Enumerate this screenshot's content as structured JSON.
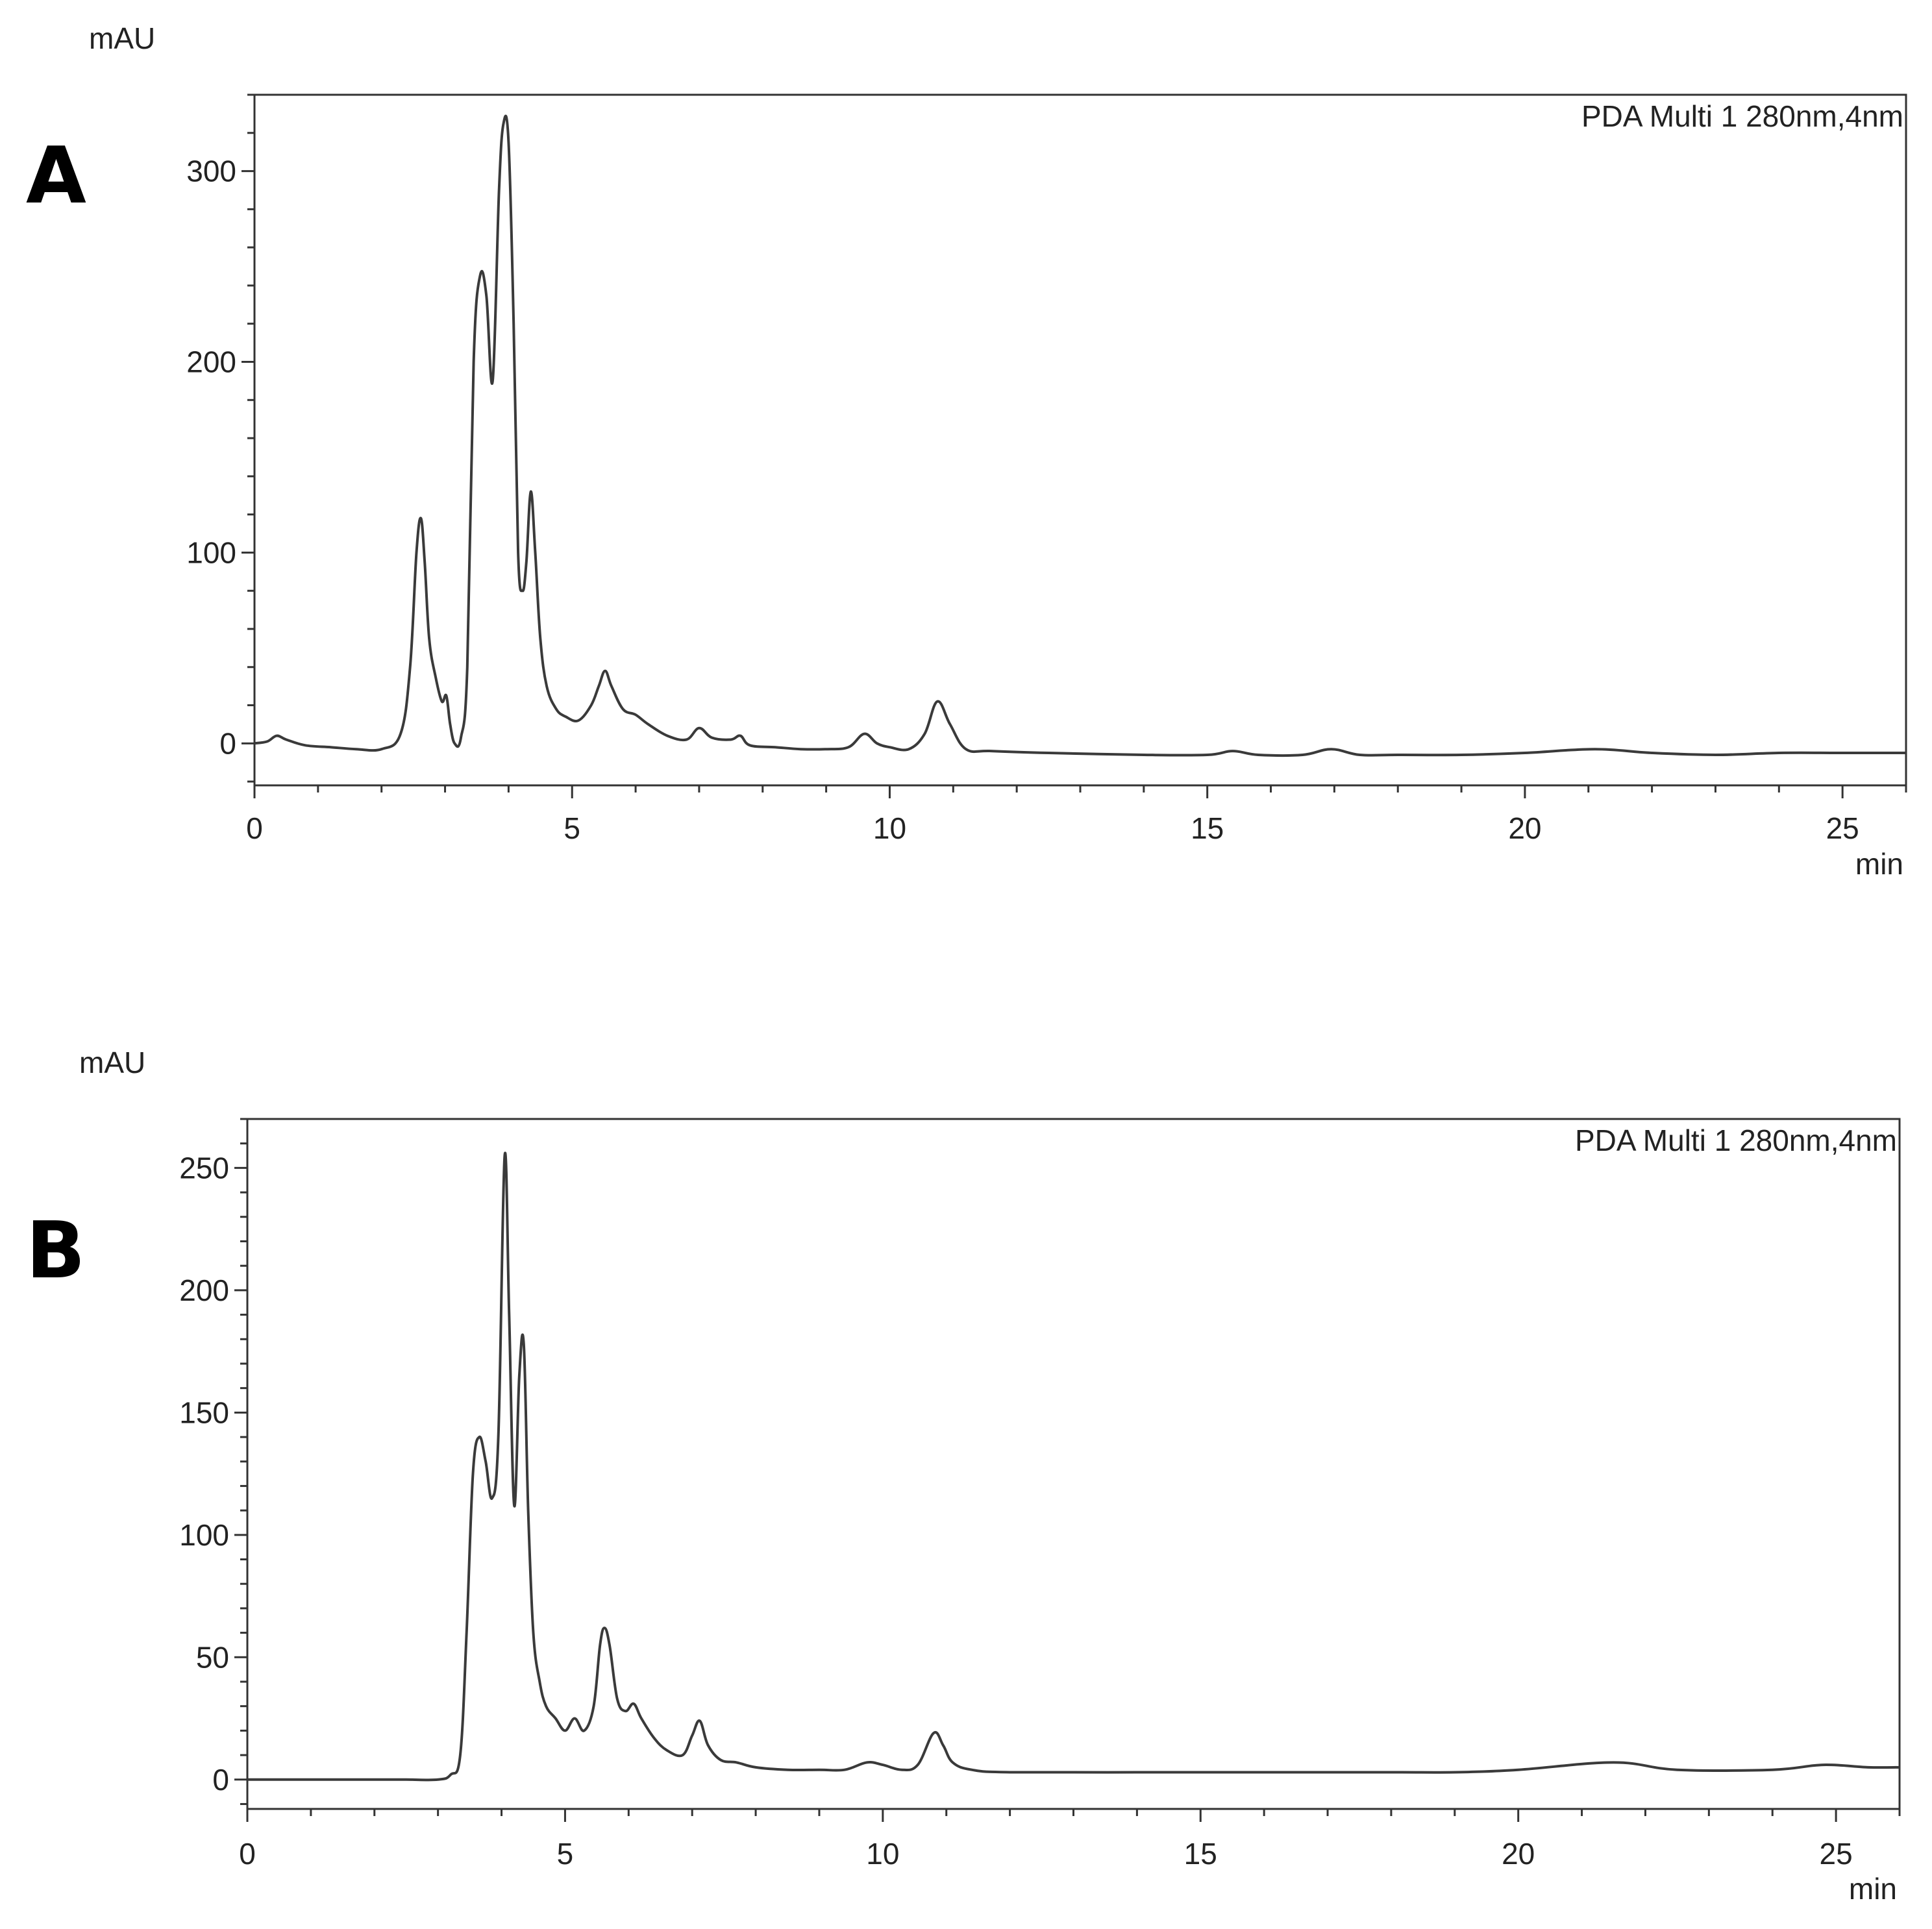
{
  "chart_data": [
    {
      "type": "line",
      "panel_label": "A",
      "ylabel": "mAU",
      "xlabel": "min",
      "legend": "PDA Multi 1 280nm,4nm",
      "xlim": [
        0,
        26
      ],
      "ylim": [
        -22,
        340
      ],
      "x_ticks": [
        0,
        5,
        10,
        15,
        20,
        25
      ],
      "y_ticks": [
        0,
        100,
        200,
        300
      ],
      "grid": false,
      "series": [
        {
          "x": [
            0,
            0.2,
            0.35,
            0.5,
            0.8,
            1.2,
            1.6,
            2.0,
            2.3,
            2.45,
            2.55,
            2.62,
            2.68,
            2.75,
            2.85,
            2.95,
            3.02,
            3.08,
            3.15,
            3.25,
            3.35,
            3.45,
            3.55,
            3.65,
            3.75,
            3.85,
            3.92,
            4.0,
            4.08,
            4.15,
            4.22,
            4.28,
            4.35,
            4.42,
            4.5,
            4.6,
            4.75,
            4.9,
            5.1,
            5.3,
            5.42,
            5.52,
            5.62,
            5.8,
            6.0,
            6.2,
            6.5,
            6.8,
            7.0,
            7.2,
            7.5,
            7.65,
            7.8,
            8.2,
            8.6,
            9.0,
            9.35,
            9.6,
            9.8,
            10.0,
            10.3,
            10.55,
            10.75,
            10.95,
            11.2,
            11.6,
            12.5,
            14,
            15,
            15.4,
            15.8,
            16.5,
            16.95,
            17.4,
            18,
            19,
            20,
            21.1,
            22,
            23,
            24,
            25,
            26
          ],
          "y": [
            0,
            1,
            4,
            2,
            -1,
            -2,
            -3,
            -3,
            5,
            40,
            100,
            118,
            95,
            55,
            35,
            22,
            25,
            10,
            0,
            3,
            40,
            200,
            245,
            235,
            190,
            290,
            325,
            315,
            220,
            100,
            80,
            95,
            132,
            100,
            55,
            30,
            18,
            14,
            12,
            20,
            30,
            38,
            30,
            18,
            15,
            10,
            4,
            2,
            8,
            3,
            2,
            4,
            -1,
            -2,
            -3,
            -3,
            -2,
            5,
            0,
            -2,
            -3,
            5,
            22,
            10,
            -3,
            -4,
            -5,
            -6,
            -6,
            -4,
            -6,
            -6,
            -3,
            -6,
            -6,
            -6,
            -5,
            -3,
            -5,
            -6,
            -5,
            -5,
            -5
          ]
        }
      ]
    },
    {
      "type": "line",
      "panel_label": "B",
      "ylabel": "mAU",
      "xlabel": "min",
      "legend": "PDA Multi 1 280nm,4nm",
      "xlim": [
        0,
        26
      ],
      "ylim": [
        -12,
        270
      ],
      "x_ticks": [
        0,
        5,
        10,
        15,
        20,
        25
      ],
      "y_ticks": [
        0,
        50,
        100,
        150,
        200,
        250
      ],
      "grid": false,
      "series": [
        {
          "x": [
            0,
            1,
            2,
            2.5,
            3.0,
            3.2,
            3.35,
            3.45,
            3.55,
            3.65,
            3.75,
            3.85,
            3.95,
            4.05,
            4.12,
            4.2,
            4.28,
            4.35,
            4.42,
            4.5,
            4.6,
            4.7,
            4.85,
            5.0,
            5.15,
            5.3,
            5.45,
            5.55,
            5.62,
            5.7,
            5.82,
            5.95,
            6.08,
            6.2,
            6.4,
            6.6,
            6.85,
            7.0,
            7.12,
            7.25,
            7.45,
            7.7,
            8.0,
            8.5,
            9.0,
            9.4,
            9.75,
            10.0,
            10.3,
            10.55,
            10.8,
            10.95,
            11.1,
            11.4,
            12.0,
            14,
            16,
            18,
            19,
            20,
            21.5,
            22.5,
            24,
            24.8,
            25.5,
            26
          ],
          "y": [
            0,
            0,
            0,
            0,
            0,
            2,
            10,
            60,
            125,
            140,
            130,
            115,
            140,
            255,
            190,
            112,
            165,
            178,
            110,
            60,
            40,
            30,
            25,
            20,
            25,
            20,
            30,
            55,
            62,
            55,
            33,
            28,
            31,
            25,
            17,
            12,
            10,
            18,
            24,
            14,
            8,
            7,
            5,
            4,
            4,
            4,
            7,
            6,
            4,
            6,
            19,
            14,
            7,
            4,
            3,
            3,
            3,
            3,
            3,
            4,
            7,
            4,
            4,
            6,
            5,
            5
          ]
        }
      ]
    }
  ]
}
